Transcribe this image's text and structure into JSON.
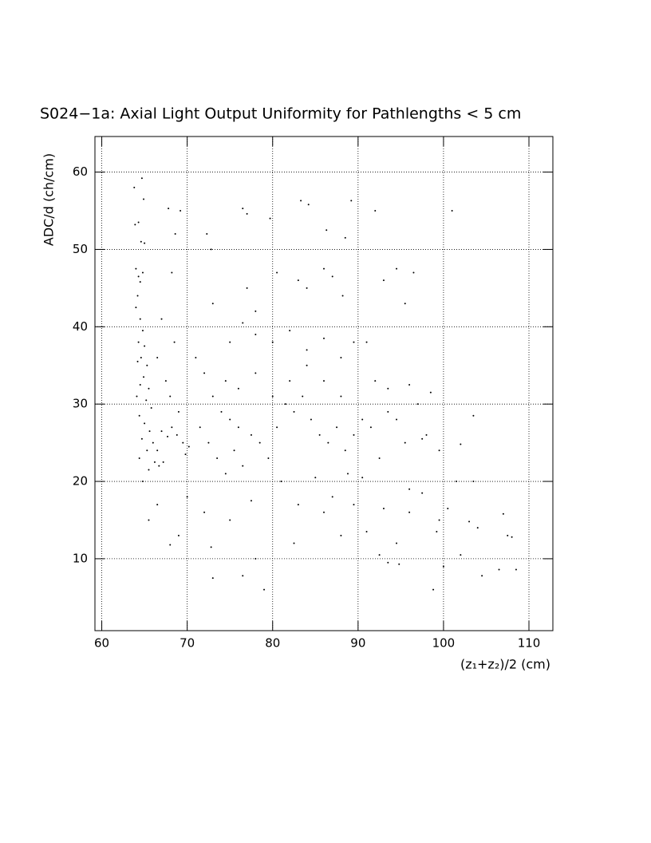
{
  "chart_data": {
    "type": "scatter",
    "title": "S024−1a: Axial Light Output Uniformity for Pathlengths < 5 cm",
    "x_label": "(z₁+z₂)/2 (cm)",
    "y_label": "ADC/d (ch/cm)",
    "color": "#000000",
    "grid": true,
    "xlim": [
      59.2,
      112.8
    ],
    "ylim": [
      0.7,
      64.6
    ],
    "xticks": [
      60,
      70,
      80,
      90,
      100,
      110
    ],
    "yticks": [
      10,
      20,
      30,
      40,
      50,
      60
    ],
    "x": [
      63.8,
      64.7,
      64.9,
      63.9,
      64.3,
      64.6,
      65,
      64,
      64.3,
      64.5,
      64.8,
      64.2,
      64,
      64.5,
      64.8,
      64.3,
      65,
      64.6,
      64.2,
      65.3,
      64.9,
      64.5,
      65.5,
      64.1,
      65.2,
      65.8,
      64.4,
      65,
      65.6,
      64.7,
      66,
      65.3,
      64.4,
      66.2,
      65.5,
      64.8,
      66.7,
      67.2,
      66.5,
      67,
      67.7,
      68.2,
      68.8,
      69.5,
      69.8,
      70.2,
      69,
      68,
      67.5,
      66.5,
      68.5,
      67,
      68.2,
      68.6,
      69.2,
      67.8,
      72.3,
      72.8,
      76.5,
      77,
      79.7,
      83.3,
      84.2,
      86.3,
      88.5,
      89.2,
      92,
      101,
      71,
      72,
      73,
      74,
      75,
      76,
      71.5,
      72.5,
      73.5,
      74.5,
      75.5,
      76.5,
      77.5,
      78.5,
      79.5,
      80.5,
      81.5,
      82.5,
      83.5,
      84.5,
      85.5,
      86.5,
      87.5,
      88.5,
      89.5,
      90.5,
      91.5,
      92.5,
      93.5,
      94.5,
      75,
      76.5,
      78,
      80,
      82,
      84,
      86,
      88,
      89.5,
      91,
      73,
      77,
      78,
      80.5,
      83,
      84,
      86,
      87,
      88.2,
      93,
      94.5,
      96.5,
      95.5,
      74.5,
      76,
      78,
      80,
      82,
      84,
      86,
      88,
      92,
      93.5,
      96,
      98.5,
      97,
      98,
      95.5,
      97.5,
      99.5,
      102,
      103.5,
      65.5,
      66.5,
      68,
      69,
      70,
      72,
      72.8,
      73,
      75,
      76.5,
      78,
      79,
      77.5,
      81,
      82.5,
      83,
      85,
      86,
      87,
      88,
      89.5,
      91,
      92.5,
      93.5,
      94.5,
      94.8,
      93,
      96,
      97.5,
      98.8,
      99.2,
      99.5,
      100.5,
      101.5,
      102,
      103,
      103.5,
      104,
      104.5,
      106.5,
      107,
      107.5,
      108,
      108.5,
      100,
      96,
      90.5,
      88.8
    ],
    "values": [
      58,
      59.2,
      56.5,
      53.2,
      53.5,
      51,
      50.8,
      47.5,
      46.5,
      45.8,
      47,
      44,
      42.5,
      41,
      39.5,
      38,
      37.5,
      36,
      35.5,
      35,
      33.5,
      32.5,
      32,
      31,
      30.5,
      29.5,
      28.5,
      27.5,
      26.5,
      25.5,
      25,
      24,
      23,
      22.5,
      21.5,
      20,
      22,
      22.5,
      24,
      26.5,
      25.8,
      27,
      26,
      25,
      23.5,
      24.5,
      29,
      31,
      33,
      36,
      38,
      41,
      47,
      52,
      55,
      55.3,
      52,
      50,
      55.3,
      54.6,
      54,
      56.3,
      55.8,
      52.5,
      51.5,
      56.3,
      55,
      55,
      36,
      34,
      31,
      29,
      28,
      27,
      27,
      25,
      23,
      21,
      24,
      22,
      26,
      25,
      23,
      27,
      30,
      29,
      31,
      28,
      26,
      25,
      27,
      24,
      26,
      28,
      27,
      23,
      29,
      28,
      38,
      40.5,
      39,
      38,
      39.5,
      37,
      38.5,
      36,
      38,
      38,
      43,
      45,
      42,
      47,
      46,
      45,
      47.5,
      46.5,
      44,
      46,
      47.5,
      47,
      43,
      33,
      32,
      34,
      31,
      33,
      35,
      33,
      31,
      33,
      32,
      32.5,
      31.5,
      30,
      26,
      25,
      25.5,
      24,
      24.8,
      28.5,
      15,
      17,
      11.8,
      13,
      18,
      16,
      11.5,
      7.5,
      15,
      7.8,
      10,
      6,
      17.5,
      20,
      12,
      17,
      20.5,
      16,
      18,
      13,
      17,
      13.5,
      10.5,
      9.5,
      12,
      9.3,
      16.5,
      19,
      18.5,
      6,
      13.5,
      15,
      16.5,
      20,
      10.5,
      14.8,
      20,
      14,
      7.8,
      8.6,
      15.8,
      13,
      12.8,
      8.6,
      9,
      16,
      20.5,
      21
    ]
  }
}
